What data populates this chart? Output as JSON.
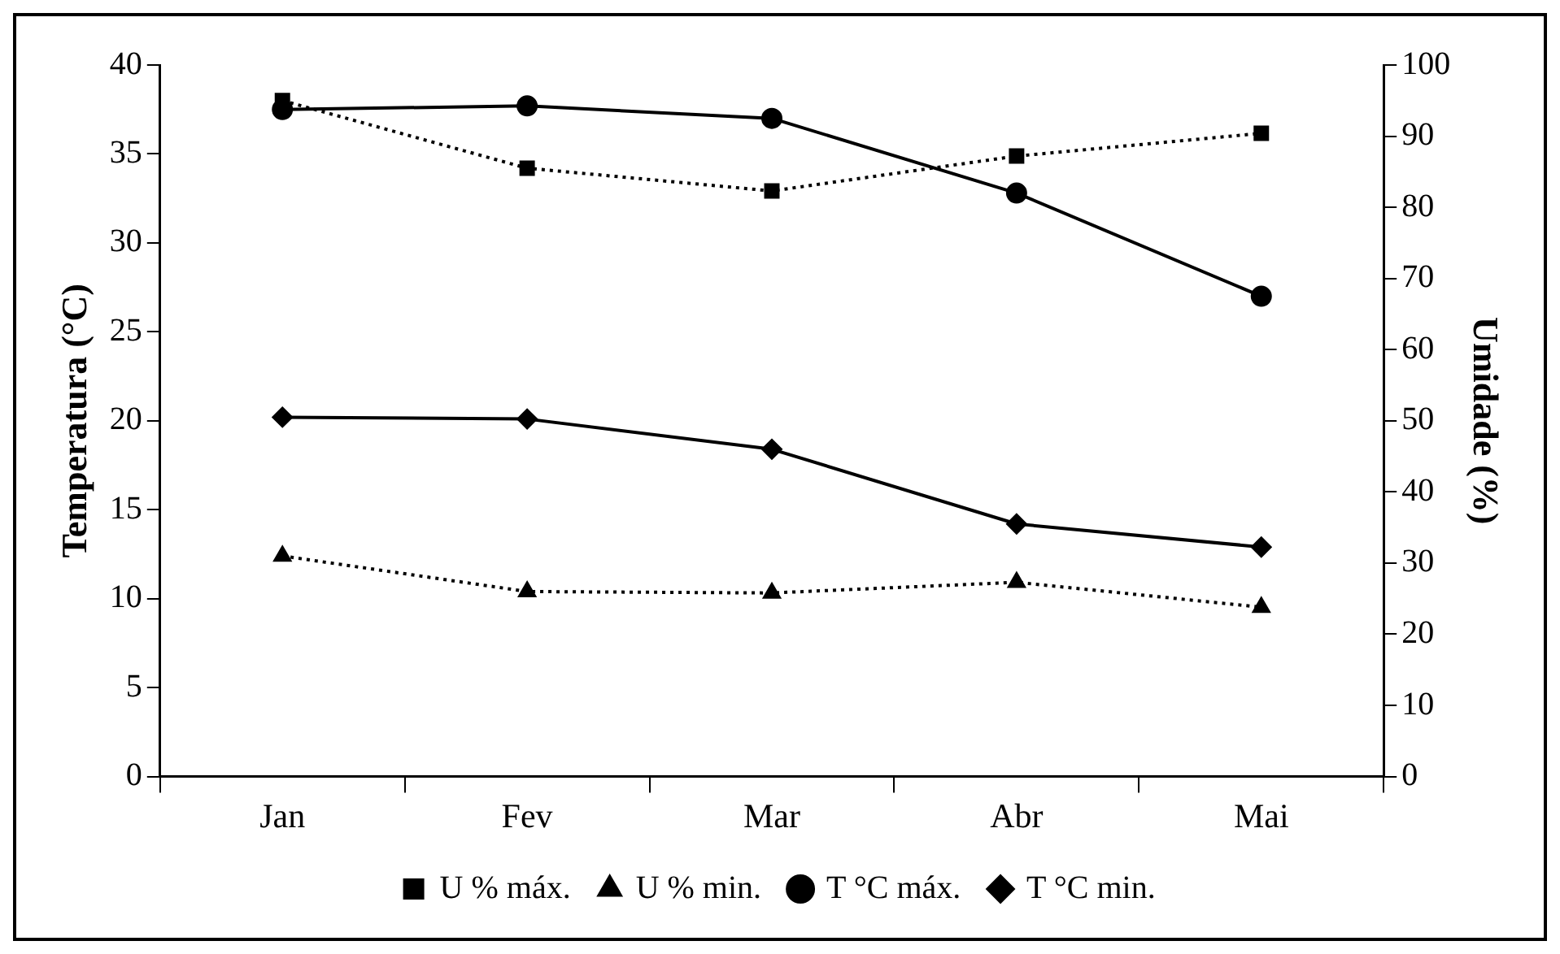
{
  "chart_data": {
    "type": "line",
    "categories": [
      "Jan",
      "Fev",
      "Mar",
      "Abr",
      "Mai"
    ],
    "ylabel": "Temperatura (°C)",
    "y2label": "Umidade (%)",
    "ylim": [
      0,
      40
    ],
    "yticks": [
      0,
      5,
      10,
      15,
      20,
      25,
      30,
      35,
      40
    ],
    "y2lim": [
      0,
      100
    ],
    "y2ticks": [
      0,
      10,
      20,
      30,
      40,
      50,
      60,
      70,
      80,
      90,
      100
    ],
    "grid": false,
    "legend": "bottom",
    "series": [
      {
        "name": "T °C máx.",
        "color": "#000000",
        "values": [
          37.5,
          37.7,
          37.0,
          32.8,
          27.0
        ],
        "marker": "circle",
        "line_style": "solid"
      },
      {
        "name": "T °C min.",
        "color": "#000000",
        "values": [
          20.2,
          20.1,
          18.4,
          14.2,
          12.9
        ],
        "marker": "diamond",
        "line_style": "solid"
      },
      {
        "name": "U % máx.",
        "color": "#000000",
        "values": [
          95,
          85.5,
          82.3,
          87.2,
          90.4
        ],
        "marker": "square",
        "line_style": "dotted",
        "axis": "y2"
      },
      {
        "name": "U % min.",
        "color": "#000000",
        "values": [
          31,
          26,
          25.8,
          27.3,
          23.8
        ],
        "marker": "triangle",
        "line_style": "dotted",
        "axis": "y2"
      }
    ]
  }
}
